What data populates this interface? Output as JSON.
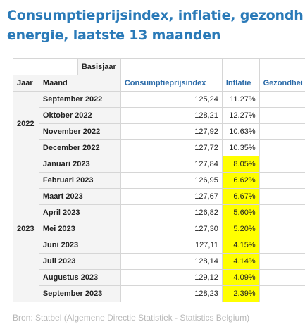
{
  "title_line1": "Consumptieprijsindex, inflatie, gezondh",
  "title_line2": "energie, laatste 13 maanden",
  "header": {
    "basisjaar": "Basisjaar",
    "jaar": "Jaar",
    "maand": "Maand",
    "cpi": "Consumptieprijsindex",
    "inflatie": "Inflatie",
    "gezondheid": "Gezondhei"
  },
  "groups": [
    {
      "year": "2022",
      "rows": [
        {
          "month": "September 2022",
          "cpi": "125,24",
          "inflation": "11.27%",
          "highlight": false
        },
        {
          "month": "Oktober 2022",
          "cpi": "128,21",
          "inflation": "12.27%",
          "highlight": false
        },
        {
          "month": "November 2022",
          "cpi": "127,92",
          "inflation": "10.63%",
          "highlight": false
        },
        {
          "month": "December 2022",
          "cpi": "127,72",
          "inflation": "10.35%",
          "highlight": false
        }
      ]
    },
    {
      "year": "2023",
      "rows": [
        {
          "month": "Januari 2023",
          "cpi": "127,84",
          "inflation": "8.05%",
          "highlight": true
        },
        {
          "month": "Februari 2023",
          "cpi": "126,95",
          "inflation": "6.62%",
          "highlight": true
        },
        {
          "month": "Maart 2023",
          "cpi": "127,67",
          "inflation": "6.67%",
          "highlight": true
        },
        {
          "month": "April 2023",
          "cpi": "126,82",
          "inflation": "5.60%",
          "highlight": true
        },
        {
          "month": "Mei 2023",
          "cpi": "127,30",
          "inflation": "5.20%",
          "highlight": true
        },
        {
          "month": "Juni 2023",
          "cpi": "127,11",
          "inflation": "4.15%",
          "highlight": true
        },
        {
          "month": "Juli 2023",
          "cpi": "128,14",
          "inflation": "4.14%",
          "highlight": true
        },
        {
          "month": "Augustus 2023",
          "cpi": "129,12",
          "inflation": "4.09%",
          "highlight": true
        },
        {
          "month": "September 2023",
          "cpi": "128,23",
          "inflation": "2.39%",
          "highlight": true
        }
      ]
    }
  ],
  "source": "Bron: Statbel (Algemene Directie Statistiek - Statistics Belgium)",
  "colors": {
    "title": "#2a7ab8",
    "highlight": "#ffff00",
    "header_blue": "#2a6aa8"
  }
}
